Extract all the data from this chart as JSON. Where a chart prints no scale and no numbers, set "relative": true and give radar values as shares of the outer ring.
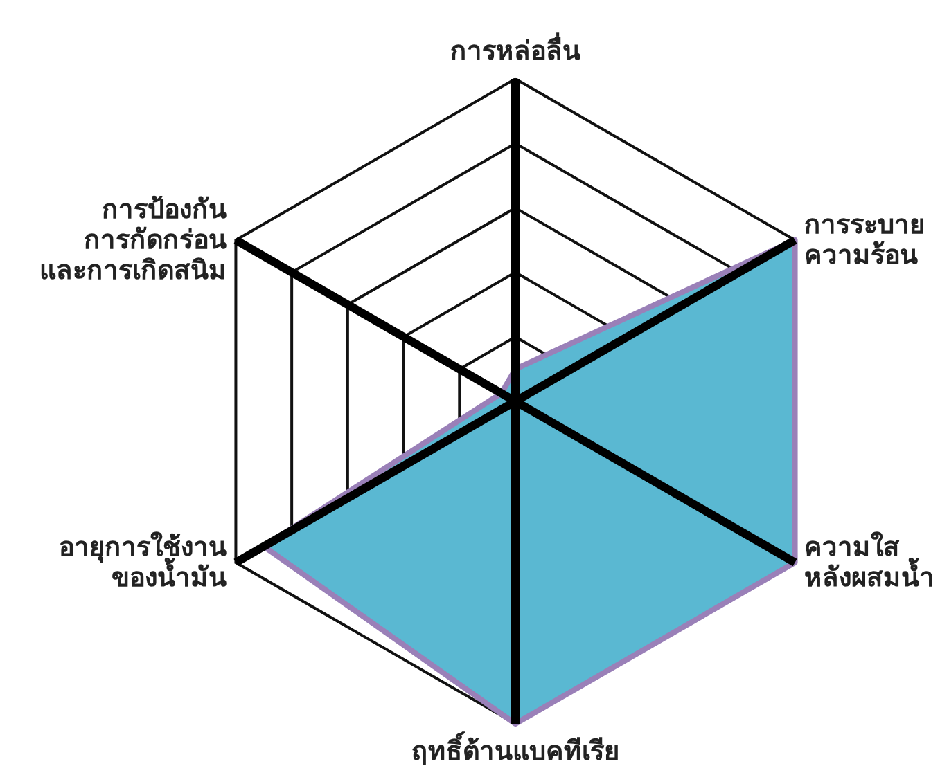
{
  "chart_data": {
    "type": "radar",
    "relative": true,
    "categories": [
      "การหล่อลื่น",
      "การระบาย\nความร้อน",
      "ความใส\nหลังผสมน้ำ",
      "ฤทธิ์ต้านแบคทีเรีย",
      "อายุการใช้งาน\nของน้ำมัน",
      "การป้องกัน\nการกัดกร่อน\nและการเกิดสนิม"
    ],
    "series": [
      {
        "color": "#5ab8d2",
        "values": [
          0.1,
          1,
          1,
          1,
          0.9,
          0.05
        ]
      }
    ],
    "grid": true
  }
}
